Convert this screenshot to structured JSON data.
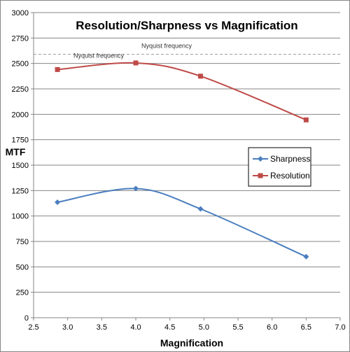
{
  "chart_data": {
    "type": "line",
    "title": "Resolution/Sharpness vs Magnification",
    "xlabel": "Magnification",
    "ylabel": "MTF",
    "xlim": [
      2.5,
      7.0
    ],
    "ylim": [
      0,
      3000
    ],
    "x_ticks": [
      "2.5",
      "3.0",
      "3.5",
      "4.0",
      "4.5",
      "5.0",
      "5.5",
      "6.0",
      "6.5",
      "7.0"
    ],
    "y_ticks": [
      "0",
      "250",
      "500",
      "750",
      "1000",
      "1250",
      "1500",
      "1750",
      "2000",
      "2250",
      "2500",
      "2750",
      "3000"
    ],
    "grid": "horizontal",
    "legend_position": "right",
    "series": [
      {
        "name": "Sharpness",
        "color": "#4a7ebf",
        "marker": "diamond",
        "smooth": true,
        "x": [
          2.85,
          4.0,
          4.95,
          6.5
        ],
        "y": [
          1135,
          1270,
          1070,
          600
        ]
      },
      {
        "name": "Resolution",
        "color": "#be4b48",
        "marker": "square",
        "smooth": true,
        "x": [
          2.85,
          4.0,
          4.95,
          6.5
        ],
        "y": [
          2440,
          2505,
          2375,
          1945
        ]
      }
    ],
    "reference_line": {
      "label": "Nyquist frequency",
      "y": 2590,
      "color": "#999999",
      "style": "dashed"
    },
    "annotations": [
      "Nyquist frequency"
    ]
  }
}
